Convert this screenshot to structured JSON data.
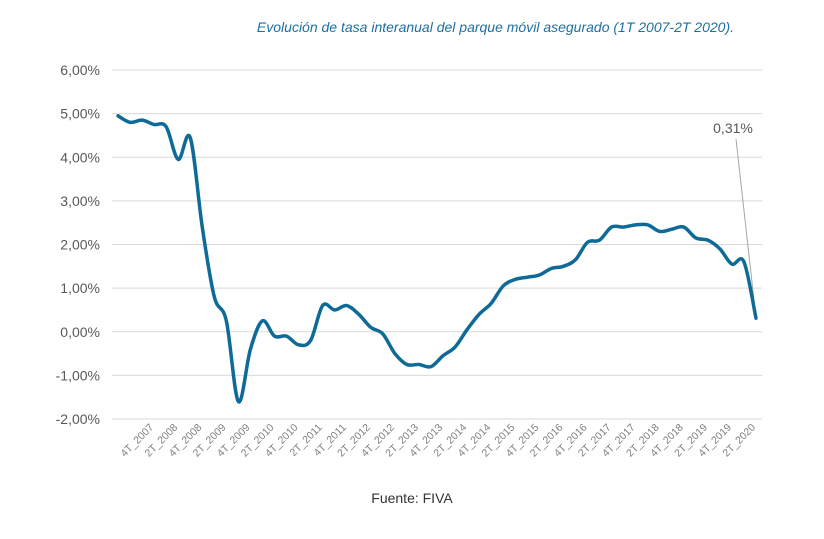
{
  "chart_data": {
    "type": "line",
    "title": "Evolución de tasa interanual del parque móvil asegurado (1T 2007-2T 2020).",
    "source": "Fuente: FIVA",
    "xlabel": "",
    "ylabel": "",
    "ylim": [
      -2,
      6
    ],
    "y_ticks": [
      6,
      5,
      4,
      3,
      2,
      1,
      0,
      -1,
      -2
    ],
    "y_tick_labels": [
      "6,00%",
      "5,00%",
      "4,00%",
      "3,00%",
      "2,00%",
      "1,00%",
      "0,00%",
      "-1,00%",
      "-2,00%"
    ],
    "grid": true,
    "line_color": "#0e6a96",
    "annotation": {
      "text": "0,31%",
      "value": 0.31
    },
    "x_tick_labels": [
      "4T_2007",
      "2T_2008",
      "4T_2008",
      "2T_2009",
      "4T_2009",
      "2T_2010",
      "4T_2010",
      "2T_2011",
      "4T_2011",
      "2T_2012",
      "4T_2012",
      "2T_2013",
      "4T_2013",
      "2T_2014",
      "4T_2014",
      "2T_2015",
      "4T_2015",
      "2T_2016",
      "4T_2016",
      "2T_2017",
      "4T_2017",
      "2T_2018",
      "4T_2018",
      "2T_2019",
      "4T_2019",
      "2T_2020"
    ],
    "x": [
      "1T_2007",
      "2T_2007",
      "3T_2007",
      "4T_2007",
      "1T_2008",
      "2T_2008",
      "3T_2008",
      "4T_2008",
      "1T_2009",
      "2T_2009",
      "3T_2009",
      "4T_2009",
      "1T_2010",
      "2T_2010",
      "3T_2010",
      "4T_2010",
      "1T_2011",
      "2T_2011",
      "3T_2011",
      "4T_2011",
      "1T_2012",
      "2T_2012",
      "3T_2012",
      "4T_2012",
      "1T_2013",
      "2T_2013",
      "3T_2013",
      "4T_2013",
      "1T_2014",
      "2T_2014",
      "3T_2014",
      "4T_2014",
      "1T_2015",
      "2T_2015",
      "3T_2015",
      "4T_2015",
      "1T_2016",
      "2T_2016",
      "3T_2016",
      "4T_2016",
      "1T_2017",
      "2T_2017",
      "3T_2017",
      "4T_2017",
      "1T_2018",
      "2T_2018",
      "3T_2018",
      "4T_2018",
      "1T_2019",
      "2T_2019",
      "3T_2019",
      "4T_2019",
      "1T_2020",
      "2T_2020"
    ],
    "values": [
      4.95,
      4.8,
      4.85,
      4.75,
      4.7,
      3.95,
      4.45,
      2.4,
      0.8,
      0.25,
      -1.6,
      -0.4,
      0.25,
      -0.1,
      -0.1,
      -0.3,
      -0.2,
      0.6,
      0.5,
      0.6,
      0.4,
      0.1,
      -0.05,
      -0.5,
      -0.75,
      -0.75,
      -0.8,
      -0.55,
      -0.35,
      0.05,
      0.4,
      0.65,
      1.05,
      1.2,
      1.25,
      1.3,
      1.45,
      1.5,
      1.65,
      2.05,
      2.1,
      2.4,
      2.4,
      2.45,
      2.45,
      2.3,
      2.35,
      2.4,
      2.15,
      2.1,
      1.9,
      1.55,
      1.6,
      0.31
    ]
  }
}
